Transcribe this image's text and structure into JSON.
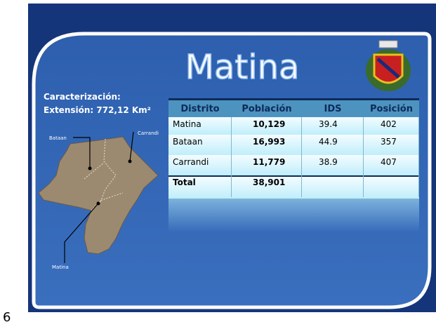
{
  "slide_number": "6",
  "title": "Matina",
  "caption": {
    "line1": "Caracterización:",
    "line2": "Extensión: 772,12 Km²"
  },
  "map": {
    "labels": [
      "Bataan",
      "Carrandi",
      "Matina"
    ]
  },
  "table": {
    "header": [
      "Distrito",
      "Población",
      "IDS",
      "Posición"
    ],
    "rows": [
      [
        "Matina",
        "10,129",
        "39.4",
        "402"
      ],
      [
        "Bataan",
        "16,993",
        "44.9",
        "357"
      ],
      [
        "Carrandi",
        "11,779",
        "38.9",
        "407"
      ],
      [
        "Total",
        "38,901"
      ]
    ]
  }
}
